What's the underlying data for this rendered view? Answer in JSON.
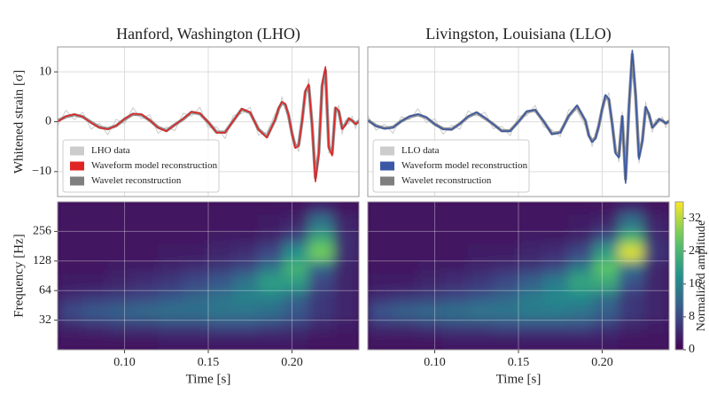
{
  "chart_data": [
    {
      "type": "line",
      "title": "Hanford, Washington (LHO)",
      "ylabel": "Whitened strain [σ]",
      "xlim": [
        0.06,
        0.24
      ],
      "ylim": [
        -15,
        15
      ],
      "yticks": [
        {
          "value": -10,
          "label": "−10"
        },
        0,
        10
      ],
      "sharex": true,
      "grid": true,
      "legend": "lower left",
      "x": [
        0.06,
        0.065,
        0.07,
        0.075,
        0.08,
        0.085,
        0.09,
        0.095,
        0.1,
        0.105,
        0.11,
        0.115,
        0.12,
        0.125,
        0.13,
        0.135,
        0.14,
        0.145,
        0.15,
        0.155,
        0.16,
        0.165,
        0.17,
        0.175,
        0.18,
        0.185,
        0.19,
        0.192,
        0.194,
        0.196,
        0.198,
        0.2,
        0.202,
        0.204,
        0.206,
        0.208,
        0.21,
        0.212,
        0.214,
        0.216,
        0.218,
        0.22,
        0.222,
        0.224,
        0.226,
        0.228,
        0.23,
        0.232,
        0.234,
        0.236,
        0.238,
        0.24
      ],
      "series": [
        {
          "name": "LHO data",
          "color": "#cccccc",
          "values": [
            -0.8,
            2.3,
            0.4,
            1.9,
            -1.5,
            -0.3,
            -2.6,
            0.5,
            -0.4,
            2.8,
            0.6,
            1.4,
            -2.3,
            -1.0,
            -1.8,
            1.7,
            1.1,
            2.9,
            -1.2,
            -1.0,
            -3.4,
            1.3,
            1.6,
            2.9,
            -2.7,
            -2.1,
            1.6,
            1.5,
            5.0,
            2.6,
            2.2,
            -3.5,
            -4.2,
            -6.0,
            1.1,
            5.2,
            8.6,
            -1.6,
            -11.0,
            -7.6,
            8.4,
            10.2,
            -6.3,
            -5.7,
            1.8,
            3.3,
            -2.5,
            0.4,
            -0.5,
            1.1,
            -1.4,
            0.8
          ]
        },
        {
          "name": "Waveform model reconstruction",
          "color": "#e02424",
          "values": [
            0,
            1.1,
            1.5,
            1.0,
            -0.2,
            -1.2,
            -1.5,
            -0.8,
            0.6,
            1.6,
            1.5,
            0.3,
            -1.2,
            -1.9,
            -0.6,
            0.6,
            2.0,
            1.7,
            -0.1,
            -2.2,
            -2.2,
            0.2,
            2.6,
            1.9,
            -1.6,
            -3.2,
            0.5,
            2.7,
            4.0,
            3.6,
            1.3,
            -2.4,
            -5.3,
            -4.9,
            0,
            6.3,
            7.5,
            -0.6,
            -12,
            -6.5,
            7.5,
            11,
            -5.3,
            -6.8,
            2.9,
            2.2,
            -1.5,
            -0.6,
            0.7,
            0.2,
            -0.5,
            0.1
          ]
        },
        {
          "name": "Wavelet reconstruction",
          "color": "#7f7f7f",
          "values": [
            0.2,
            1.0,
            1.4,
            1.0,
            -0.1,
            -1.1,
            -1.4,
            -0.8,
            0.5,
            1.5,
            1.4,
            0.3,
            -1.1,
            -1.8,
            -0.6,
            0.5,
            1.9,
            1.6,
            -0.1,
            -2.1,
            -2.1,
            0.2,
            2.5,
            1.8,
            -1.5,
            -3.0,
            0.4,
            2.6,
            3.8,
            3.4,
            1.2,
            -2.3,
            -5.0,
            -4.6,
            0.1,
            6.0,
            7.2,
            -0.5,
            -11.2,
            -6.2,
            7.1,
            10.3,
            -5.0,
            -6.4,
            2.7,
            2.0,
            -1.3,
            -0.5,
            0.6,
            0.2,
            -0.4,
            0.1
          ]
        }
      ]
    },
    {
      "type": "line",
      "title": "Livingston, Louisiana (LLO)",
      "xlim": [
        0.06,
        0.24
      ],
      "ylim": [
        -15,
        15
      ],
      "sharex": true,
      "sharey": true,
      "grid": true,
      "legend": "lower left",
      "x": [
        0.06,
        0.065,
        0.07,
        0.075,
        0.08,
        0.085,
        0.09,
        0.095,
        0.1,
        0.105,
        0.11,
        0.115,
        0.12,
        0.125,
        0.13,
        0.135,
        0.14,
        0.145,
        0.15,
        0.155,
        0.16,
        0.165,
        0.17,
        0.175,
        0.18,
        0.185,
        0.19,
        0.192,
        0.194,
        0.196,
        0.198,
        0.2,
        0.202,
        0.204,
        0.206,
        0.208,
        0.21,
        0.212,
        0.214,
        0.216,
        0.218,
        0.22,
        0.222,
        0.224,
        0.226,
        0.228,
        0.23,
        0.232,
        0.234,
        0.236,
        0.238,
        0.24
      ],
      "series": [
        {
          "name": "LLO data",
          "color": "#cccccc",
          "values": [
            1.2,
            -1.7,
            -0.5,
            -2.3,
            1.0,
            0.4,
            2.6,
            -0.2,
            0.6,
            -2.5,
            -0.7,
            -1.5,
            2.2,
            1.1,
            1.9,
            -1.4,
            -0.9,
            -2.8,
            1.1,
            1.2,
            3.3,
            -1.0,
            -1.6,
            -3.0,
            2.4,
            2.2,
            -0.9,
            -1.6,
            -5.0,
            -2.4,
            -1.9,
            3.4,
            4.3,
            5.8,
            -1.3,
            -5.3,
            -8.1,
            2.0,
            -11.6,
            2.1,
            13.0,
            6.4,
            -8.3,
            -3.1,
            4.0,
            0.6,
            -2.1,
            0.5,
            -0.2,
            1.0,
            -1.2,
            0.6
          ]
        },
        {
          "name": "Waveform model reconstruction",
          "color": "#3a58a6",
          "values": [
            0.3,
            -0.9,
            -1.4,
            -1.2,
            0.1,
            1.1,
            1.5,
            0.9,
            -0.5,
            -1.5,
            -1.6,
            -0.4,
            1.1,
            1.9,
            0.8,
            -0.5,
            -1.9,
            -1.9,
            0.0,
            2.1,
            2.4,
            0.1,
            -2.5,
            -2.2,
            1.2,
            3.3,
            0.2,
            -2.8,
            -4.1,
            -3.4,
            -0.8,
            2.6,
            5.4,
            4.6,
            -0.5,
            -6.4,
            -7.2,
            1.2,
            -12.3,
            3.0,
            14.3,
            5.5,
            -7.5,
            -4.0,
            3.0,
            1.5,
            -1.2,
            -0.4,
            0.5,
            0.2,
            -0.3,
            0.1
          ]
        },
        {
          "name": "Wavelet reconstruction",
          "color": "#7f7f7f",
          "values": [
            0.3,
            -0.8,
            -1.3,
            -1.1,
            0.1,
            1.0,
            1.4,
            0.8,
            -0.5,
            -1.4,
            -1.5,
            -0.4,
            1.0,
            1.8,
            0.7,
            -0.5,
            -1.8,
            -1.8,
            0.0,
            2.0,
            2.3,
            0.1,
            -2.4,
            -2.1,
            1.1,
            3.1,
            0.2,
            -2.7,
            -3.9,
            -3.2,
            -0.8,
            2.5,
            5.1,
            4.4,
            -0.4,
            -6.1,
            -6.9,
            1.0,
            -11.5,
            2.8,
            13.5,
            5.2,
            -7.0,
            -3.8,
            2.8,
            1.4,
            -1.1,
            -0.4,
            0.5,
            0.2,
            -0.3,
            0.1
          ]
        }
      ]
    },
    {
      "type": "heatmap",
      "xlabel": "Time [s]",
      "ylabel": "Frequency [Hz]",
      "xlim": [
        0.06,
        0.24
      ],
      "ylim": [
        16,
        512
      ],
      "yscale": "log",
      "grid": true,
      "zlim": [
        0,
        36
      ],
      "xticks": [
        {
          "value": 0.1,
          "label": "0.10"
        },
        {
          "value": 0.15,
          "label": "0.15"
        },
        {
          "value": 0.2,
          "label": "0.20"
        }
      ],
      "yticks": [
        32,
        64,
        128,
        256
      ],
      "xbins": [
        0.06,
        0.075,
        0.09,
        0.105,
        0.12,
        0.135,
        0.15,
        0.165,
        0.18,
        0.195,
        0.21,
        0.225,
        0.24
      ],
      "ybins": [
        16,
        24,
        32,
        48,
        64,
        96,
        128,
        192,
        256,
        384,
        512
      ],
      "z": [
        [
          2,
          2,
          2,
          2,
          3,
          3,
          3,
          3,
          3,
          3,
          2,
          2
        ],
        [
          4,
          5,
          6,
          6,
          7,
          7,
          8,
          8,
          7,
          6,
          4,
          3
        ],
        [
          8,
          10,
          11,
          12,
          13,
          13,
          14,
          14,
          13,
          10,
          6,
          4
        ],
        [
          5,
          6,
          7,
          8,
          10,
          12,
          14,
          16,
          16,
          12,
          6,
          4
        ],
        [
          3,
          3,
          4,
          5,
          6,
          8,
          10,
          14,
          20,
          20,
          8,
          4
        ],
        [
          2,
          2,
          3,
          3,
          4,
          5,
          6,
          8,
          14,
          24,
          12,
          4
        ],
        [
          2,
          2,
          2,
          2,
          3,
          3,
          4,
          5,
          8,
          18,
          28,
          5
        ],
        [
          2,
          2,
          2,
          2,
          2,
          2,
          3,
          3,
          4,
          8,
          22,
          5
        ],
        [
          2,
          2,
          2,
          2,
          2,
          2,
          2,
          2,
          3,
          4,
          14,
          4
        ],
        [
          2,
          2,
          2,
          2,
          2,
          2,
          2,
          2,
          2,
          2,
          5,
          2
        ]
      ]
    },
    {
      "type": "heatmap",
      "xlabel": "Time [s]",
      "xlim": [
        0.06,
        0.24
      ],
      "ylim": [
        16,
        512
      ],
      "yscale": "log",
      "sharey": true,
      "grid": true,
      "zlim": [
        0,
        36
      ],
      "xticks": [
        {
          "value": 0.1,
          "label": "0.10"
        },
        {
          "value": 0.15,
          "label": "0.15"
        },
        {
          "value": 0.2,
          "label": "0.20"
        }
      ],
      "xbins": [
        0.06,
        0.075,
        0.09,
        0.105,
        0.12,
        0.135,
        0.15,
        0.165,
        0.18,
        0.195,
        0.21,
        0.225,
        0.24
      ],
      "ybins": [
        16,
        24,
        32,
        48,
        64,
        96,
        128,
        192,
        256,
        384,
        512
      ],
      "z": [
        [
          2,
          2,
          2,
          3,
          3,
          3,
          3,
          3,
          3,
          3,
          2,
          2
        ],
        [
          5,
          5,
          6,
          7,
          7,
          8,
          8,
          8,
          8,
          6,
          4,
          3
        ],
        [
          9,
          11,
          12,
          13,
          14,
          14,
          15,
          15,
          14,
          11,
          6,
          4
        ],
        [
          5,
          6,
          7,
          8,
          10,
          12,
          15,
          17,
          17,
          13,
          6,
          4
        ],
        [
          3,
          3,
          4,
          5,
          6,
          8,
          11,
          15,
          21,
          22,
          9,
          4
        ],
        [
          2,
          2,
          3,
          3,
          4,
          5,
          6,
          8,
          15,
          27,
          14,
          4
        ],
        [
          2,
          2,
          2,
          2,
          3,
          3,
          4,
          5,
          8,
          20,
          34,
          6
        ],
        [
          2,
          2,
          2,
          2,
          2,
          2,
          3,
          3,
          4,
          9,
          24,
          5
        ],
        [
          2,
          2,
          2,
          2,
          2,
          2,
          2,
          2,
          3,
          4,
          14,
          4
        ],
        [
          2,
          2,
          2,
          2,
          2,
          2,
          2,
          2,
          2,
          2,
          5,
          2
        ]
      ],
      "colorbar_label": "Normalized amplitude",
      "zticks": [
        0,
        8,
        16,
        24,
        32
      ]
    }
  ]
}
